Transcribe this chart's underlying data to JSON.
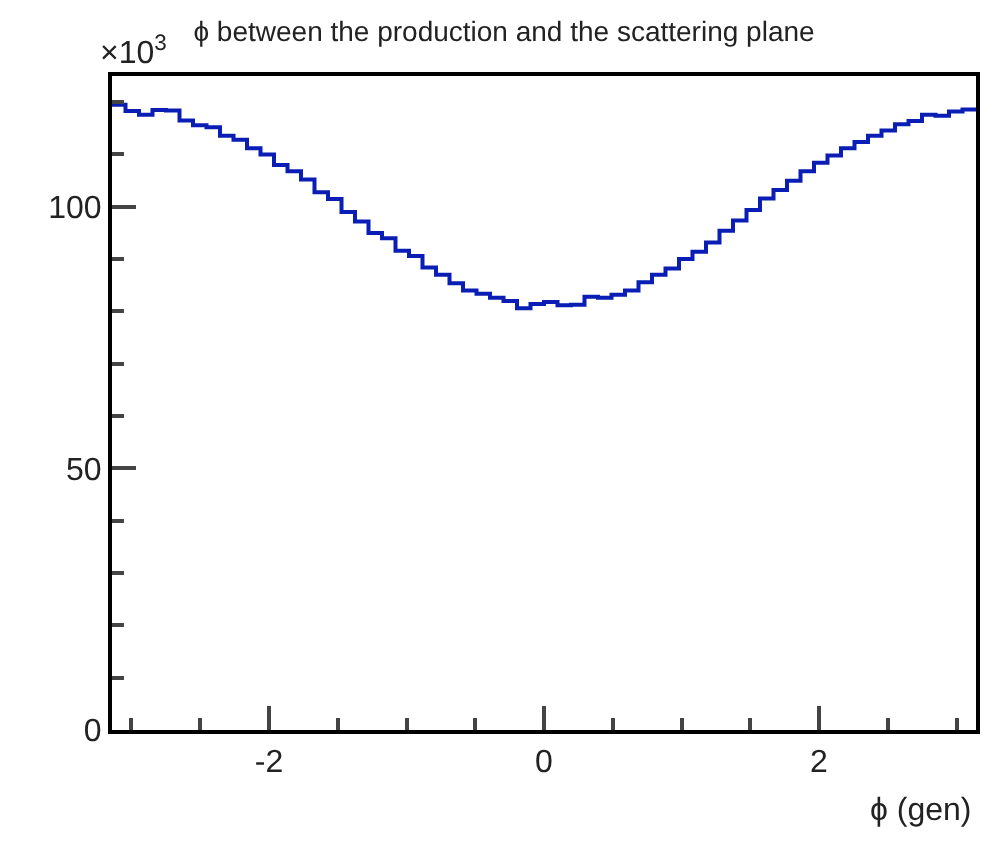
{
  "chart_data": {
    "type": "histogram",
    "title": "ϕ between the production and the scattering plane",
    "xlabel": "ϕ (gen)",
    "annotations": [
      "×10$^{3}$"
    ],
    "bins": [
      -3.1416,
      -3.0434,
      -2.9452,
      -2.8471,
      -2.7489,
      -2.6507,
      -2.5525,
      -2.4544,
      -2.3562,
      -2.258,
      -2.1598,
      -2.0617,
      -1.9635,
      -1.8653,
      -1.7671,
      -1.669,
      -1.5708,
      -1.4726,
      -1.3744,
      -1.2763,
      -1.1781,
      -1.0799,
      -0.9817,
      -0.8836,
      -0.7854,
      -0.6872,
      -0.589,
      -0.4909,
      -0.3927,
      -0.2945,
      -0.1963,
      -0.0982,
      0,
      0.0982,
      0.1963,
      0.2945,
      0.3927,
      0.4909,
      0.589,
      0.6872,
      0.7854,
      0.8836,
      0.9817,
      1.0799,
      1.1781,
      1.2763,
      1.3744,
      1.4726,
      1.5708,
      1.669,
      1.7671,
      1.8653,
      1.9635,
      2.0617,
      2.1598,
      2.258,
      2.3562,
      2.4544,
      2.5525,
      2.6507,
      2.7489,
      2.8471,
      2.9452,
      3.0434,
      3.1416
    ],
    "values": [
      119.5,
      118.3,
      117.6,
      118.5,
      118.4,
      116.5,
      115.6,
      115.2,
      113.6,
      112.8,
      111.2,
      110.0,
      108.0,
      106.8,
      105.2,
      102.8,
      101.5,
      99.0,
      97.2,
      95.0,
      94.0,
      91.6,
      90.6,
      88.4,
      87.0,
      85.4,
      84.0,
      83.4,
      82.6,
      82.0,
      80.6,
      81.4,
      81.8,
      81.2,
      81.3,
      82.8,
      82.6,
      83.2,
      84.0,
      85.6,
      87.0,
      88.2,
      90.0,
      91.4,
      93.2,
      95.4,
      97.4,
      99.4,
      101.6,
      103.2,
      105.0,
      106.8,
      108.4,
      109.8,
      111.2,
      112.4,
      113.6,
      114.6,
      115.8,
      116.4,
      117.6,
      117.4,
      118.2,
      118.6
    ],
    "color": "#0a1db4",
    "xlim": [
      -3.1416,
      3.1416
    ],
    "xticks": [
      -2,
      0,
      2
    ],
    "ylim": [
      0,
      125
    ],
    "yticks": [
      0,
      50,
      100
    ]
  }
}
